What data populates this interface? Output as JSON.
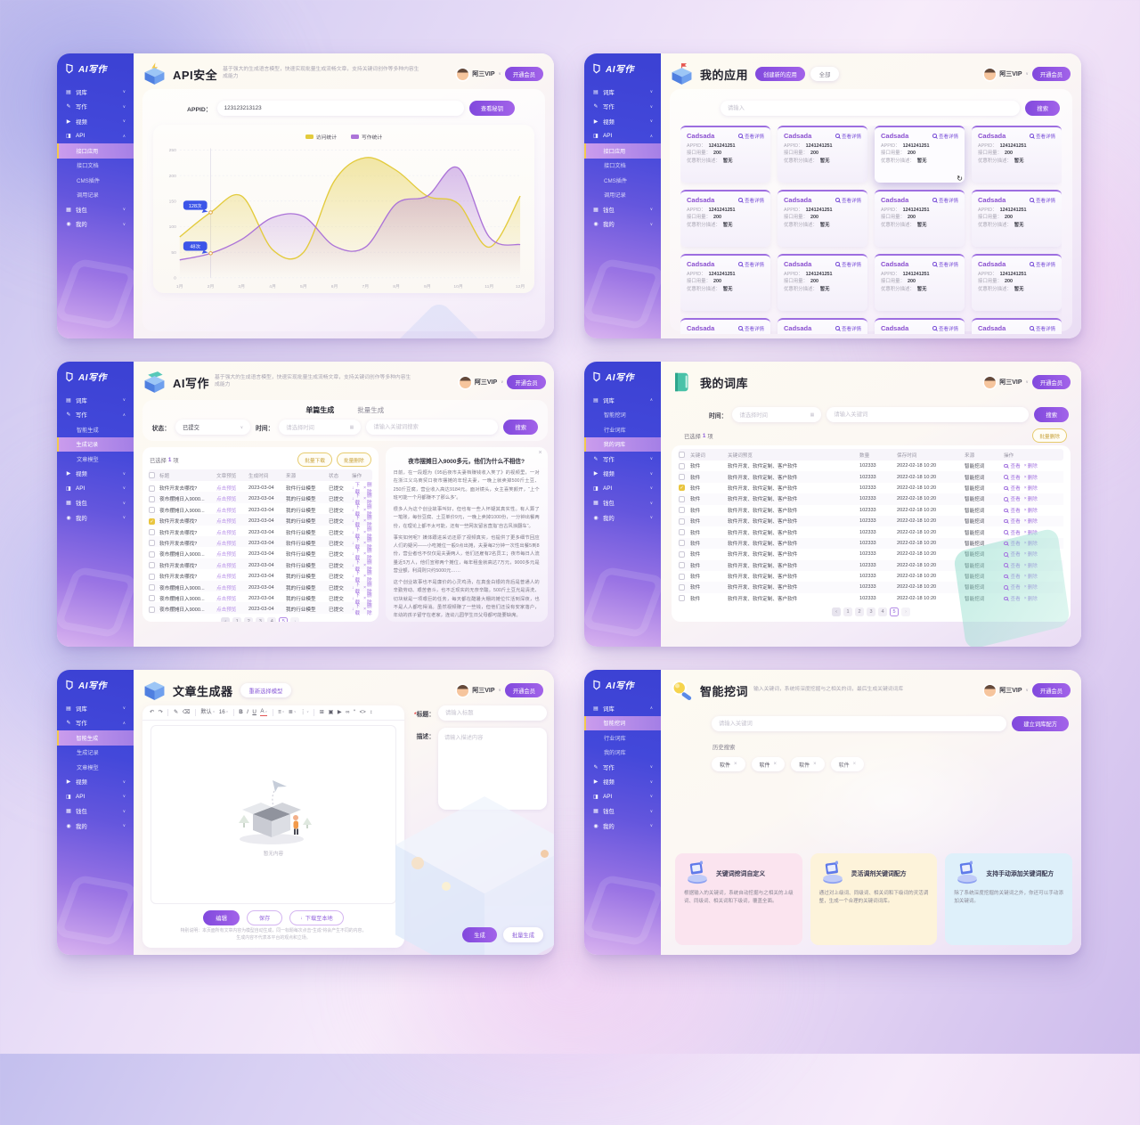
{
  "brand": {
    "logo": "AI写作"
  },
  "user": {
    "name": "阿三VIP",
    "chevron": "∨",
    "vip": "开通会员"
  },
  "colors": {
    "accent_purple": "#8b5cd8",
    "accent_yellow": "#e8c53a",
    "series_yellow": "#e3cb3d",
    "series_purple": "#ac74d8",
    "tooltip_blue": "#3c55e8"
  },
  "icons": {
    "book": "▤",
    "edit": "✎",
    "video": "▶",
    "api": "◨",
    "wallet": "▦",
    "user": "◉"
  },
  "sidebars": {
    "api": [
      {
        "label": "词库",
        "icon": "book",
        "chev": "∨"
      },
      {
        "label": "写作",
        "icon": "edit",
        "chev": "∨"
      },
      {
        "label": "视频",
        "icon": "video",
        "chev": "∨"
      },
      {
        "label": "API",
        "icon": "api",
        "chev": "∧"
      },
      {
        "label": "接口应用",
        "sub": true,
        "active": true
      },
      {
        "label": "接口文档",
        "sub": true
      },
      {
        "label": "CMS插件",
        "sub": true
      },
      {
        "label": "调用记录",
        "sub": true
      },
      {
        "label": "钱包",
        "icon": "wallet",
        "chev": "∨"
      },
      {
        "label": "我的",
        "icon": "user",
        "chev": "∨"
      }
    ],
    "write_rec": [
      {
        "label": "词库",
        "icon": "book",
        "chev": "∨"
      },
      {
        "label": "写作",
        "icon": "edit",
        "chev": "∧"
      },
      {
        "label": "智能生成",
        "sub": true
      },
      {
        "label": "生成记录",
        "sub": true,
        "active": true
      },
      {
        "label": "文章模型",
        "sub": true
      },
      {
        "label": "视频",
        "icon": "video",
        "chev": "∨"
      },
      {
        "label": "API",
        "icon": "api",
        "chev": "∨"
      },
      {
        "label": "钱包",
        "icon": "wallet",
        "chev": "∨"
      },
      {
        "label": "我的",
        "icon": "user",
        "chev": "∨"
      }
    ],
    "write_gen": [
      {
        "label": "词库",
        "icon": "book",
        "chev": "∨"
      },
      {
        "label": "写作",
        "icon": "edit",
        "chev": "∧"
      },
      {
        "label": "智能生成",
        "sub": true,
        "active": true
      },
      {
        "label": "生成记录",
        "sub": true
      },
      {
        "label": "文章模型",
        "sub": true
      },
      {
        "label": "视频",
        "icon": "video",
        "chev": "∨"
      },
      {
        "label": "API",
        "icon": "api",
        "chev": "∨"
      },
      {
        "label": "钱包",
        "icon": "wallet",
        "chev": "∨"
      },
      {
        "label": "我的",
        "icon": "user",
        "chev": "∨"
      }
    ],
    "lib_my": [
      {
        "label": "词库",
        "icon": "book",
        "chev": "∧"
      },
      {
        "label": "智能挖词",
        "sub": true
      },
      {
        "label": "行业词库",
        "sub": true
      },
      {
        "label": "我的词库",
        "sub": true,
        "active": true
      },
      {
        "label": "写作",
        "icon": "edit",
        "chev": "∨"
      },
      {
        "label": "视频",
        "icon": "video",
        "chev": "∨"
      },
      {
        "label": "API",
        "icon": "api",
        "chev": "∨"
      },
      {
        "label": "钱包",
        "icon": "wallet",
        "chev": "∨"
      },
      {
        "label": "我的",
        "icon": "user",
        "chev": "∨"
      }
    ],
    "lib_mine": [
      {
        "label": "词库",
        "icon": "book",
        "chev": "∧"
      },
      {
        "label": "智能挖词",
        "sub": true,
        "active": true
      },
      {
        "label": "行业词库",
        "sub": true
      },
      {
        "label": "我的词库",
        "sub": true
      },
      {
        "label": "写作",
        "icon": "edit",
        "chev": "∨"
      },
      {
        "label": "视频",
        "icon": "video",
        "chev": "∨"
      },
      {
        "label": "API",
        "icon": "api",
        "chev": "∨"
      },
      {
        "label": "钱包",
        "icon": "wallet",
        "chev": "∨"
      },
      {
        "label": "我的",
        "icon": "user",
        "chev": "∨"
      }
    ]
  },
  "panels": {
    "p1": {
      "title": "API安全",
      "subtitle": "基于强大的生成语言模型，快速实现批量生成流畅文章，支持关键词创作等多种内容生成能力",
      "appid_label": "APPID：",
      "appid_value": "123123213123",
      "view_key": "查看秘钥",
      "chart_data": {
        "type": "area",
        "categories": [
          "1月",
          "2月",
          "3月",
          "4月",
          "5月",
          "6月",
          "7月",
          "8月",
          "9月",
          "10月",
          "11月",
          "12月"
        ],
        "ylim": [
          0,
          250
        ],
        "yticks": [
          0,
          50,
          100,
          150,
          200,
          250
        ],
        "series": [
          {
            "name": "访问统计",
            "color": "#e3cb3d",
            "values": [
              80,
              128,
              160,
              55,
              50,
              190,
              235,
              210,
              160,
              145,
              60,
              160
            ]
          },
          {
            "name": "写作统计",
            "color": "#ac74d8",
            "values": [
              35,
              48,
              75,
              118,
              120,
              62,
              60,
              145,
              160,
              215,
              80,
              65
            ]
          }
        ],
        "tooltips": [
          {
            "series": 0,
            "index": 1,
            "label": "128次"
          },
          {
            "series": 1,
            "index": 1,
            "label": "48次"
          }
        ],
        "guide_index": 1,
        "legend_position": "top"
      }
    },
    "p2": {
      "title": "我的应用",
      "btn_create": "创建新的应用",
      "btn_all": "全部",
      "search_placeholder": "请输入",
      "search_btn": "搜索",
      "card": {
        "title": "Cadsada",
        "detail": "查看详情",
        "fields": [
          {
            "label": "APPID：",
            "value": "1241241251"
          },
          {
            "label": "接口用量：",
            "value": "200"
          },
          {
            "label": "优惠积分描述：",
            "value": "暂无"
          }
        ]
      },
      "card_count": 16,
      "selected_index": 2
    },
    "p3": {
      "title": "AI写作",
      "subtitle": "基于强大的生成语言模型，快速实现批量生成流畅文章，支持关键词创作等多种内容生成能力",
      "tabs": [
        "单篇生成",
        "批量生成"
      ],
      "active_tab": 0,
      "filters": {
        "status_label": "状态：",
        "status_value": "已提交",
        "time_label": "时间：",
        "time_placeholder": "请选择时间",
        "keyword_placeholder": "请输入关键词搜索",
        "search_btn": "搜索"
      },
      "selected": {
        "prefix": "已选择",
        "count": "1",
        "suffix": "项"
      },
      "batch_download": "批量下载",
      "batch_delete": "批量删除",
      "table": {
        "headers": [
          "标题",
          "文章预览",
          "生成时间",
          "来源",
          "状态",
          "操作"
        ],
        "preview": "点击预览",
        "download": "下载",
        "delete": "删除",
        "rows": [
          {
            "title": "软件开发去哪找?",
            "time": "2023-03-04",
            "source": "软件行业模型",
            "status": "已提交"
          },
          {
            "title": "夜市摆摊日入9000...",
            "time": "2023-03-04",
            "source": "我的行业模型",
            "status": "已提交"
          },
          {
            "title": "夜市摆摊日入9000...",
            "time": "2023-03-04",
            "source": "我的行业模型",
            "status": "已提交"
          },
          {
            "title": "软件开发去哪找?",
            "time": "2023-03-04",
            "source": "我的行业模型",
            "status": "已提交",
            "checked": true
          },
          {
            "title": "软件开发去哪找?",
            "time": "2023-03-04",
            "source": "软件行业模型",
            "status": "已提交"
          },
          {
            "title": "软件开发去哪找?",
            "time": "2023-03-04",
            "source": "软件行业模型",
            "status": "已提交"
          },
          {
            "title": "夜市摆摊日入9000...",
            "time": "2023-03-04",
            "source": "软件行业模型",
            "status": "已提交"
          },
          {
            "title": "软件开发去哪找?",
            "time": "2023-03-04",
            "source": "软件行业模型",
            "status": "已提交"
          },
          {
            "title": "软件开发去哪找?",
            "time": "2023-03-04",
            "source": "我的行业模型",
            "status": "已提交"
          },
          {
            "title": "夜市摆摊日入9000...",
            "time": "2023-03-04",
            "source": "我的行业模型",
            "status": "已提交"
          },
          {
            "title": "夜市摆摊日入9000...",
            "time": "2023-03-04",
            "source": "我的行业模型",
            "status": "已提交"
          },
          {
            "title": "夜市摆摊日入9000...",
            "time": "2023-03-04",
            "source": "我的行业模型",
            "status": "已提交"
          }
        ]
      },
      "pagination": {
        "prev": "‹",
        "pages": [
          "1",
          "2",
          "3",
          "4",
          "5"
        ],
        "next": "›",
        "active": "5"
      },
      "preview_panel": {
        "close": "×",
        "title": "夜市摆摊日入9000多元，他们为什么不相信?",
        "paragraphs": [
          "日前，在一段题为《95后夜市夫妻档赚钱收入笑了》的视频里，一对在浙江义乌商贸口夜市摆摊的年轻夫妻，一晚上就卖掉500斤土豆、250斤豆腐，营业收入高达9184元。面对镜头，女主喜笑颜开，“上个班可能一个月都赚不了那么多”。",
          "很多人为这个创业故事叫好，但也有一些人怀疑其真实性。有人算了一笔账，每份豆腐、土豆单价9元，一晚上卖掉1000份，一分钟出餐两份，在理论上都不太可能，还有一些网友留言直指“自古风浪翻车”。",
          "事实如何呢？媒体跟进采访还原了视频真实，也提供了更多细节回应人们的疑问——小吃摊位一般9点出摊，夫妻每2分钟一次性出餐5到8份，营业者也不仅仅是夫妻两人，他们还雇有2名员工；夜市每日人流量近5万人，他们宣称两个摊位，每年租金就高达7万元，9000多元是营业额，利润则只约5000元……",
          "这个创业故事也不是廉价的心灵鸡汤，在真金白银的背后是普通人的辛勤劳动、艰苦奋斗，也不乏现实的无奈辛酸。500斤土豆光是清洗、切块就是一项艰巨的任务，每天都在酷暑大棚的摊位忙活到深夜，也不是人人都吃得消。虽然视频赚了一些钱，但他们还没有安家落户，年幼的孩子留守在老家，连幼儿园学生日父母都可能要缺席。"
        ],
        "download_btn": "下载至本地"
      }
    },
    "p4": {
      "title": "我的词库",
      "filters": {
        "time_label": "时间：",
        "time_placeholder": "请选择时间",
        "keyword_placeholder": "请输入关键词",
        "search_btn": "搜索"
      },
      "selected": {
        "prefix": "已选择",
        "count": "1",
        "suffix": "项"
      },
      "batch_delete": "批量删除",
      "table": {
        "headers": [
          "关键词",
          "关键词预览",
          "数量",
          "保存时间",
          "来源",
          "操作"
        ],
        "view": "查看",
        "delete": "删除",
        "row": {
          "keyword": "软件",
          "preview": "软件开发、软件定制、客户软件",
          "count": "102333",
          "time": "2022-02-18 10:20",
          "source": "智能挖词"
        },
        "row_count": 13,
        "checked_index": 2
      },
      "pagination": {
        "prev": "‹",
        "pages": [
          "1",
          "2",
          "3",
          "4",
          "5"
        ],
        "next": "›",
        "active": "5"
      }
    },
    "p5": {
      "title": "文章生成器",
      "reselect": "重新选择模型",
      "toolbar": [
        {
          "name": "undo-icon",
          "glyph": "↶"
        },
        {
          "name": "redo-icon",
          "glyph": "↷"
        },
        {
          "sep": true
        },
        {
          "name": "format-painter-icon",
          "glyph": "✎"
        },
        {
          "name": "clear-format-icon",
          "glyph": "⌫"
        },
        {
          "sep": true
        },
        {
          "name": "font-family-select",
          "glyph": "默认",
          "caret": true
        },
        {
          "name": "font-size-select",
          "glyph": "16",
          "caret": true
        },
        {
          "sep": true
        },
        {
          "name": "bold-icon",
          "glyph": "B"
        },
        {
          "name": "italic-icon",
          "glyph": "I"
        },
        {
          "name": "underline-icon",
          "glyph": "U"
        },
        {
          "name": "font-color-icon",
          "glyph": "A",
          "caret": true
        },
        {
          "sep": true
        },
        {
          "name": "align-icon",
          "glyph": "≡",
          "caret": true
        },
        {
          "name": "list-icon",
          "glyph": "≣",
          "caret": true
        },
        {
          "name": "indent-icon",
          "glyph": "⋮",
          "caret": true
        },
        {
          "sep": true
        },
        {
          "name": "table-icon",
          "glyph": "⊞"
        },
        {
          "name": "image-icon",
          "glyph": "▣"
        },
        {
          "name": "insert-video-icon",
          "glyph": "▶"
        },
        {
          "name": "link-icon",
          "glyph": "∞"
        },
        {
          "name": "quote-icon",
          "glyph": "“"
        },
        {
          "name": "code-icon",
          "glyph": "<>"
        },
        {
          "name": "fullscreen-icon",
          "glyph": "↕"
        }
      ],
      "empty_caption": "暂无内容",
      "btn_edit": "编辑",
      "btn_save": "保存",
      "btn_download": "下载至本地",
      "note1": "特别说明：本页面所有文章内容为模型自动生成，同一标题每次点击“生成”将会产生不同的内容，",
      "note2": "生成内容不代表本平台的观点和立场。",
      "form": {
        "required": "*",
        "title_label": "标题：",
        "title_placeholder": "请输入标题",
        "desc_label": "描述：",
        "desc_placeholder": "请输入描述内容"
      },
      "btn_generate": "生成",
      "btn_batch_generate": "批量生成"
    },
    "p6": {
      "title": "智能挖词",
      "subtitle": "输入关键词，系统将深度挖掘与之相关的词，最后生成关键词词库",
      "search_placeholder": "请输入关键词",
      "build_btn": "建立词库配方",
      "history_label": "历史搜索",
      "tags": [
        "软件",
        "软件",
        "软件",
        "软件"
      ],
      "tag_close": "×",
      "cards": [
        {
          "bg": "#fbe4ef",
          "title": "关键词挖词自定义",
          "desc": "根据输入的关键词，系统自动挖掘与之相关的上级词、同级词、相关词和下级词，覆盖全面。"
        },
        {
          "bg": "#fdf3da",
          "title": "灵活调剂关键词配方",
          "desc": "通过对上级词、同级词、相关词和下级词的灵活调整，生成一个合理的关键词词库。"
        },
        {
          "bg": "#def0fa",
          "title": "支持手动添加关键词配方",
          "desc": "除了系统深度挖掘的关键词之外，你还可以手动添加关键词。"
        }
      ]
    }
  }
}
